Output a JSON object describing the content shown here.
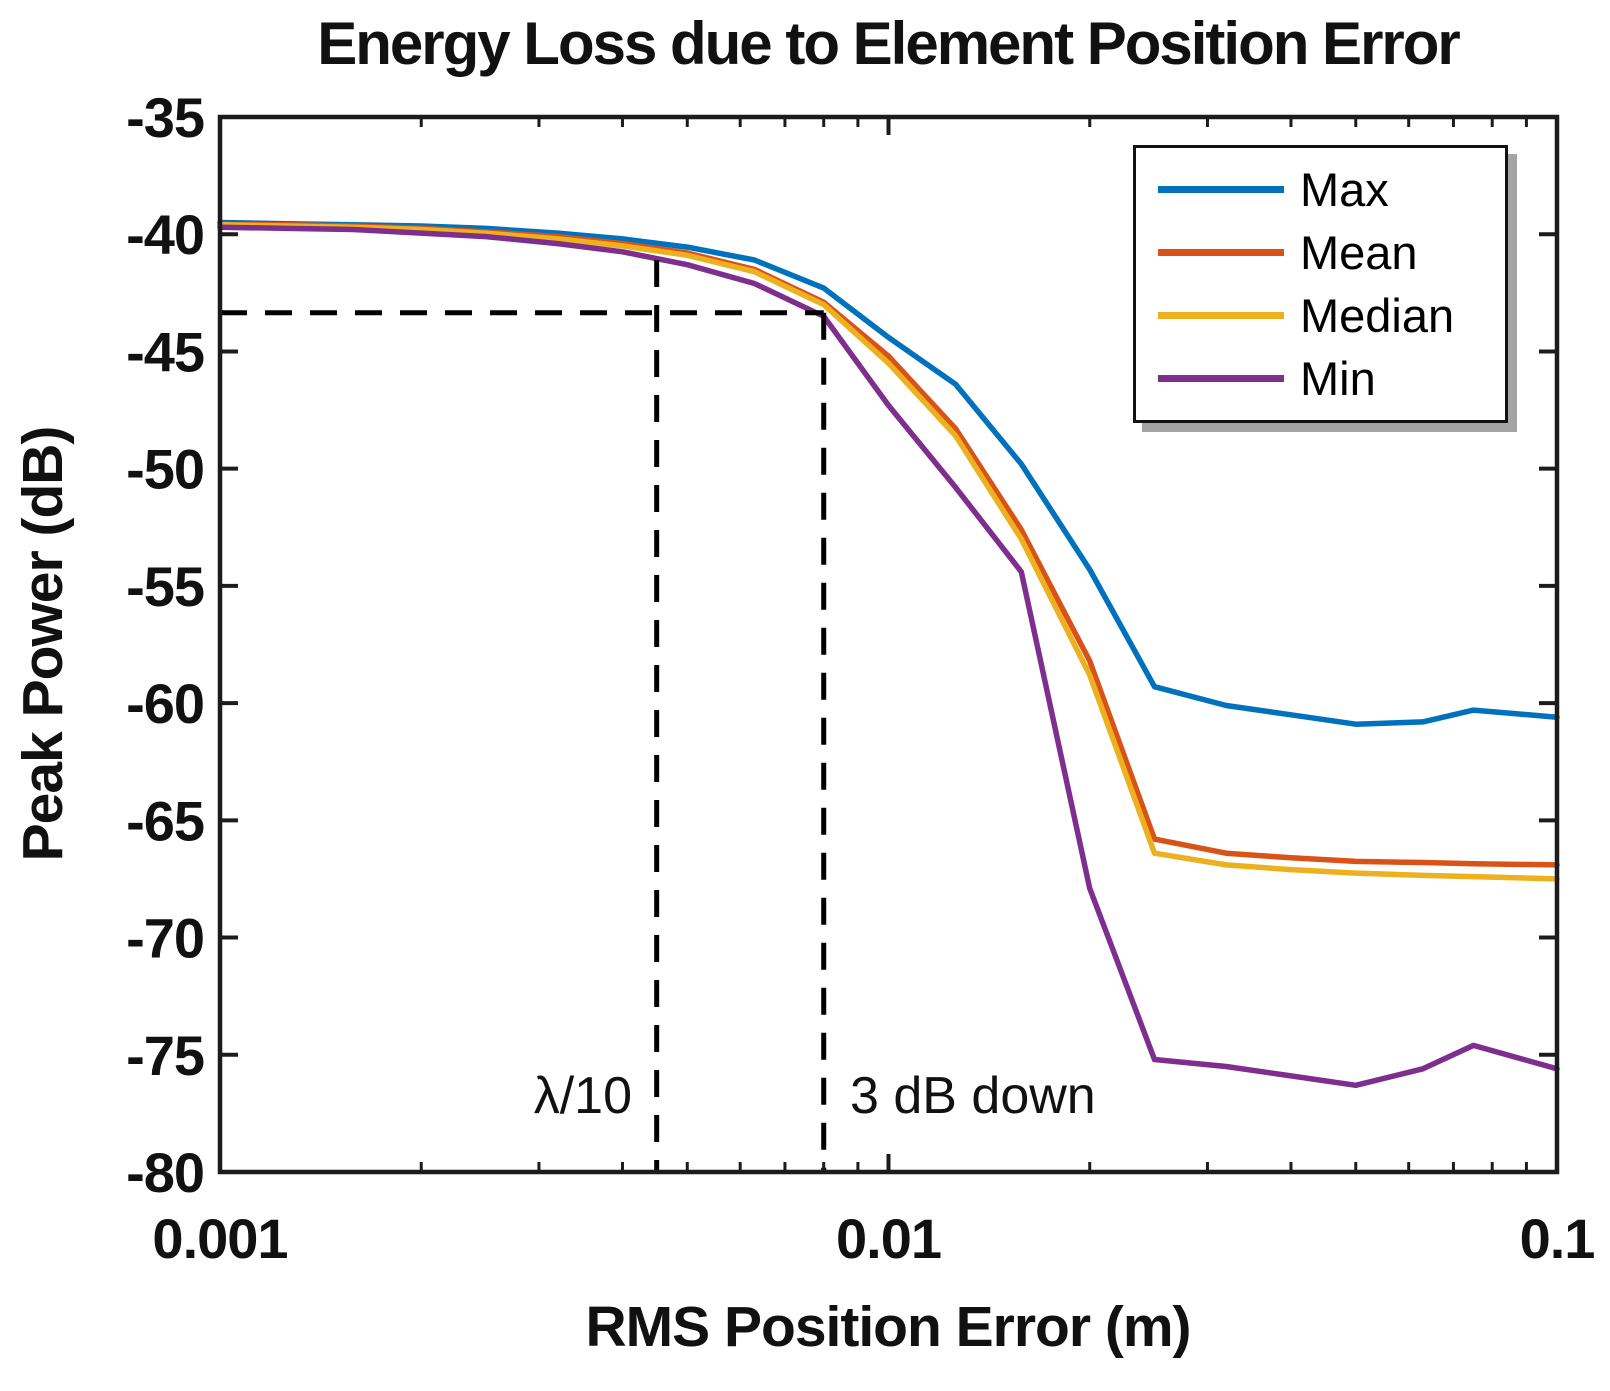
{
  "chart_data": {
    "type": "line",
    "title": "Energy Loss due to Element Position Error",
    "xlabel": "RMS Position Error (m)",
    "ylabel": "Peak Power (dB)",
    "x_scale": "log",
    "xlim": [
      0.001,
      0.1
    ],
    "ylim": [
      -80,
      -35
    ],
    "grid": false,
    "legend_position": "upper right",
    "xticks": [
      {
        "value": 0.001,
        "label": "0.001"
      },
      {
        "value": 0.01,
        "label": "0.01"
      },
      {
        "value": 0.1,
        "label": "0.1"
      }
    ],
    "yticks": [
      {
        "value": -35,
        "label": "-35"
      },
      {
        "value": -40,
        "label": "-40"
      },
      {
        "value": -45,
        "label": "-45"
      },
      {
        "value": -50,
        "label": "-50"
      },
      {
        "value": -55,
        "label": "-55"
      },
      {
        "value": -60,
        "label": "-60"
      },
      {
        "value": -65,
        "label": "-65"
      },
      {
        "value": -70,
        "label": "-70"
      },
      {
        "value": -75,
        "label": "-75"
      },
      {
        "value": -80,
        "label": "-80"
      }
    ],
    "x": [
      0.001,
      0.00126,
      0.00158,
      0.002,
      0.0025,
      0.0032,
      0.004,
      0.005,
      0.0063,
      0.008,
      0.01,
      0.0126,
      0.0158,
      0.02,
      0.025,
      0.032,
      0.04,
      0.05,
      0.063,
      0.075,
      0.1
    ],
    "series": [
      {
        "name": "Max",
        "color": "#0072BD",
        "values": [
          -39.5,
          -39.55,
          -39.6,
          -39.65,
          -39.75,
          -39.95,
          -40.2,
          -40.55,
          -41.1,
          -42.3,
          -44.4,
          -46.4,
          -49.8,
          -54.3,
          -59.3,
          -60.1,
          -60.5,
          -60.9,
          -60.8,
          -60.3,
          -60.6
        ]
      },
      {
        "name": "Mean",
        "color": "#D95319",
        "values": [
          -39.6,
          -39.6,
          -39.65,
          -39.75,
          -39.9,
          -40.1,
          -40.4,
          -40.8,
          -41.5,
          -42.9,
          -45.2,
          -48.3,
          -52.6,
          -58.2,
          -65.8,
          -66.4,
          -66.6,
          -66.75,
          -66.8,
          -66.85,
          -66.9
        ]
      },
      {
        "name": "Median",
        "color": "#EDB120",
        "values": [
          -39.6,
          -39.65,
          -39.7,
          -39.8,
          -39.95,
          -40.2,
          -40.5,
          -40.9,
          -41.6,
          -43.0,
          -45.5,
          -48.6,
          -53.0,
          -58.8,
          -66.4,
          -66.9,
          -67.1,
          -67.25,
          -67.35,
          -67.4,
          -67.5
        ]
      },
      {
        "name": "Min",
        "color": "#7E2F8E",
        "values": [
          -39.7,
          -39.75,
          -39.8,
          -39.95,
          -40.1,
          -40.4,
          -40.75,
          -41.3,
          -42.1,
          -43.5,
          -47.3,
          -50.8,
          -54.4,
          -67.9,
          -75.2,
          -75.5,
          -75.9,
          -76.3,
          -75.6,
          -74.6,
          -75.6
        ]
      }
    ],
    "annotations": {
      "lambda_over_10": {
        "label": "λ/10",
        "x": 0.0045,
        "line_top_dB": -41.1
      },
      "three_db_down": {
        "label": "3 dB down",
        "x": 0.008,
        "level_dB": -43.35
      }
    },
    "style": {
      "annotation_line_color": "#000000",
      "axis_color": "#1c1c1c"
    }
  }
}
